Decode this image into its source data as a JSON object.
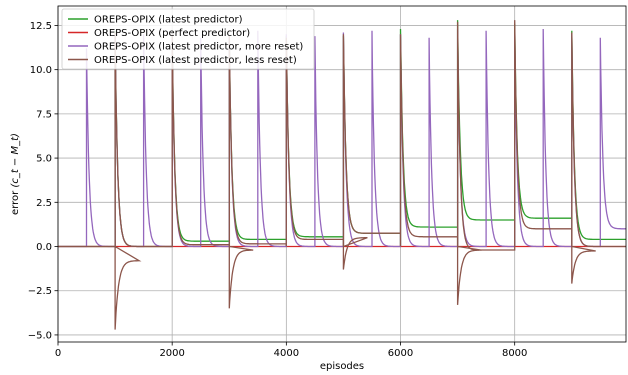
{
  "chart_data": {
    "type": "line",
    "title": "",
    "xlabel": "episodes",
    "ylabel_main": "error ",
    "ylabel_math": "(c_t − M_t)",
    "xlim": [
      0,
      9950
    ],
    "ylim": [
      -5.4,
      13.6
    ],
    "x_ticks": [
      0,
      2000,
      4000,
      6000,
      8000
    ],
    "x_tick_labels": [
      "0",
      "2000",
      "4000",
      "6000",
      "8000"
    ],
    "y_ticks": [
      -5.0,
      -2.5,
      0.0,
      2.5,
      5.0,
      7.5,
      10.0,
      12.5
    ],
    "y_tick_labels": [
      "−5.0",
      "−2.5",
      "0.0",
      "2.5",
      "5.0",
      "7.5",
      "10.0",
      "12.5"
    ],
    "grid": true,
    "legend_position": "top-left",
    "series": [
      {
        "name": "OREPS-OPIX (latest predictor)",
        "color": "#2ca02c",
        "resets": [
          {
            "x": 1000,
            "peak": 12.2,
            "tail": 0.0
          },
          {
            "x": 2000,
            "peak": 11.9,
            "tail": 0.3
          },
          {
            "x": 3000,
            "peak": 11.8,
            "tail": 0.4
          },
          {
            "x": 4000,
            "peak": 11.9,
            "tail": 0.55
          },
          {
            "x": 5000,
            "peak": 11.9,
            "tail": 0.75
          },
          {
            "x": 6000,
            "peak": 12.3,
            "tail": 1.1
          },
          {
            "x": 7000,
            "peak": 12.8,
            "tail": 1.5
          },
          {
            "x": 8000,
            "peak": 12.6,
            "tail": 1.6
          },
          {
            "x": 9000,
            "peak": 12.2,
            "tail": 0.4
          }
        ]
      },
      {
        "name": "OREPS-OPIX (perfect predictor)",
        "color": "#d62728",
        "constant": 0.0
      },
      {
        "name": "OREPS-OPIX (latest predictor, more reset)",
        "color": "#9467bd",
        "resets": [
          {
            "x": 500,
            "peak": 11.2,
            "tail": 0.0
          },
          {
            "x": 1000,
            "peak": 12.0,
            "tail": 0.0
          },
          {
            "x": 1500,
            "peak": 12.0,
            "tail": 0.0
          },
          {
            "x": 2000,
            "peak": 11.8,
            "tail": 0.0
          },
          {
            "x": 2500,
            "peak": 11.8,
            "tail": 0.0
          },
          {
            "x": 3000,
            "peak": 11.9,
            "tail": 0.0
          },
          {
            "x": 3500,
            "peak": 12.2,
            "tail": 0.0
          },
          {
            "x": 4000,
            "peak": 12.0,
            "tail": 0.0
          },
          {
            "x": 4500,
            "peak": 11.9,
            "tail": 0.0
          },
          {
            "x": 5000,
            "peak": 12.1,
            "tail": 0.0
          },
          {
            "x": 5500,
            "peak": 12.2,
            "tail": 0.0
          },
          {
            "x": 6000,
            "peak": 12.0,
            "tail": 0.0
          },
          {
            "x": 6500,
            "peak": 11.8,
            "tail": 0.0
          },
          {
            "x": 7000,
            "peak": 12.3,
            "tail": 0.0
          },
          {
            "x": 7500,
            "peak": 12.2,
            "tail": 0.0
          },
          {
            "x": 8000,
            "peak": 12.0,
            "tail": 0.0
          },
          {
            "x": 8500,
            "peak": 12.3,
            "tail": 0.0
          },
          {
            "x": 9000,
            "peak": 12.0,
            "tail": 0.0
          },
          {
            "x": 9500,
            "peak": 11.8,
            "tail": 1.0
          }
        ]
      },
      {
        "name": "OREPS-OPIX (latest predictor, less reset)",
        "color": "#8c564b",
        "resets": [
          {
            "x": 1000,
            "peak": 12.1,
            "tail": 0.0,
            "dip": -4.7,
            "dip_tail": -0.8
          },
          {
            "x": 2000,
            "peak": 12.0,
            "tail": 0.1
          },
          {
            "x": 3000,
            "peak": 11.9,
            "tail": 0.15,
            "dip": -3.5,
            "dip_tail": -0.2
          },
          {
            "x": 4000,
            "peak": 11.8,
            "tail": 0.4
          },
          {
            "x": 5000,
            "peak": 12.0,
            "tail": 0.75,
            "dip": -1.3,
            "dip_tail": 0.5
          },
          {
            "x": 6000,
            "peak": 12.0,
            "tail": 0.55
          },
          {
            "x": 7000,
            "peak": 12.7,
            "tail": -0.2,
            "dip": -3.3,
            "dip_tail": -0.2
          },
          {
            "x": 8000,
            "peak": 12.8,
            "tail": 1.0
          },
          {
            "x": 9000,
            "peak": 12.1,
            "tail": 0.0,
            "dip": -2.1,
            "dip_tail": -0.25
          }
        ]
      }
    ]
  }
}
